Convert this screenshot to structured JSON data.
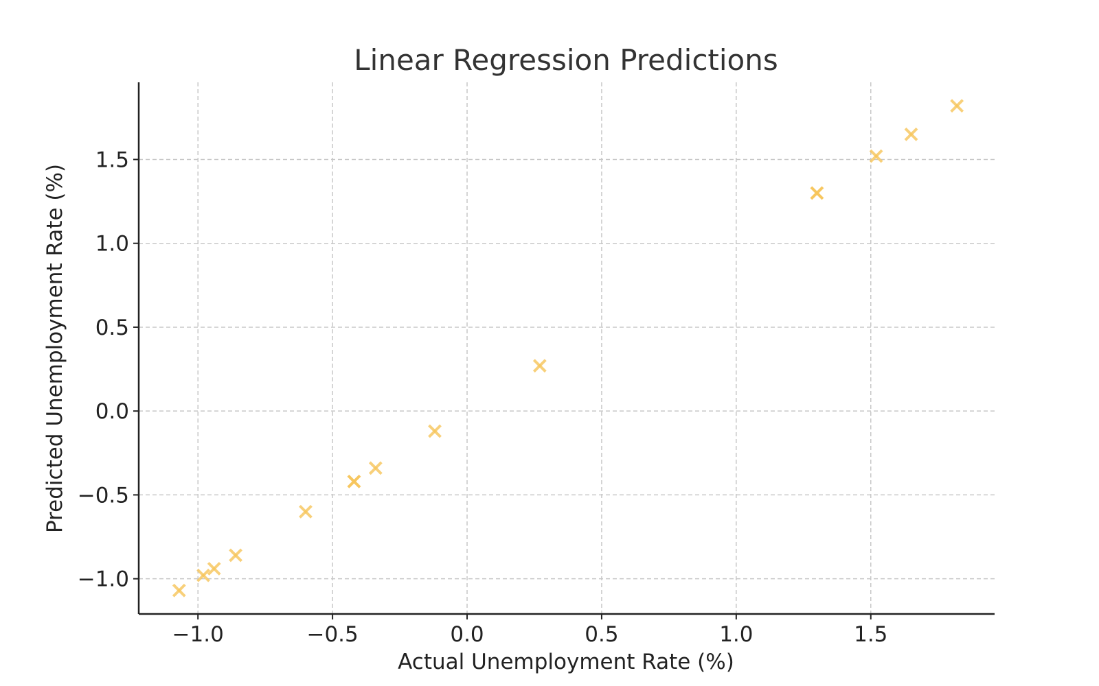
{
  "chart_data": {
    "type": "scatter",
    "title": "Linear Regression Predictions",
    "xlabel": "Actual Unemployment Rate (%)",
    "ylabel": "Predicted Unemployment Rate (%)",
    "xlim": [
      -1.22,
      1.96
    ],
    "ylim": [
      -1.21,
      1.96
    ],
    "x_ticks": [
      -1.0,
      -0.5,
      0.0,
      0.5,
      1.0,
      1.5
    ],
    "x_tick_labels": [
      "−1.0",
      "−0.5",
      "0.0",
      "0.5",
      "1.0",
      "1.5"
    ],
    "y_ticks": [
      -1.0,
      -0.5,
      0.0,
      0.5,
      1.0,
      1.5
    ],
    "y_tick_labels": [
      "−1.0",
      "−0.5",
      "0.0",
      "0.5",
      "1.0",
      "1.5"
    ],
    "grid": true,
    "marker": "x",
    "marker_color": "#f7c55a",
    "series": [
      {
        "points": [
          {
            "x": -1.07,
            "y": -1.07
          },
          {
            "x": -0.98,
            "y": -0.98
          },
          {
            "x": -0.94,
            "y": -0.94
          },
          {
            "x": -0.86,
            "y": -0.86
          },
          {
            "x": -0.6,
            "y": -0.6
          },
          {
            "x": -0.42,
            "y": -0.42
          },
          {
            "x": -0.42,
            "y": -0.42
          },
          {
            "x": -0.34,
            "y": -0.34
          },
          {
            "x": -0.12,
            "y": -0.12
          },
          {
            "x": 0.27,
            "y": 0.27
          },
          {
            "x": 1.3,
            "y": 1.3
          },
          {
            "x": 1.3,
            "y": 1.3
          },
          {
            "x": 1.52,
            "y": 1.52
          },
          {
            "x": 1.65,
            "y": 1.65
          },
          {
            "x": 1.82,
            "y": 1.82
          }
        ]
      }
    ]
  }
}
